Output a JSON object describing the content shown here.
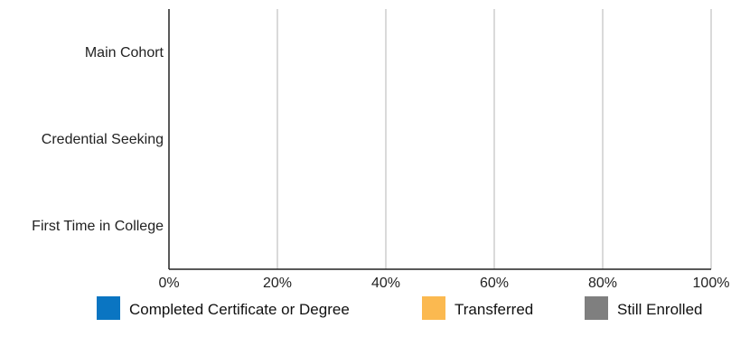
{
  "chart_data": {
    "type": "bar",
    "orientation": "horizontal",
    "stacked": true,
    "categories": [
      "Main Cohort",
      "Credential Seeking",
      "First Time in College"
    ],
    "series": [
      {
        "name": "Completed Certificate or Degree",
        "color": "#0a75c2",
        "values": [
          0,
          0,
          0
        ]
      },
      {
        "name": "Transferred",
        "color": "#fbb950",
        "values": [
          0,
          0,
          0
        ]
      },
      {
        "name": "Still Enrolled",
        "color": "#7f7f7f",
        "values": [
          0,
          0,
          0
        ]
      }
    ],
    "xlim": [
      0,
      100
    ],
    "xticks": [
      0,
      20,
      40,
      60,
      80,
      100
    ],
    "xtick_labels": [
      "0%",
      "20%",
      "40%",
      "60%",
      "80%",
      "100%"
    ],
    "grid": true,
    "legend_position": "bottom",
    "title": "",
    "xlabel": "",
    "ylabel": ""
  }
}
